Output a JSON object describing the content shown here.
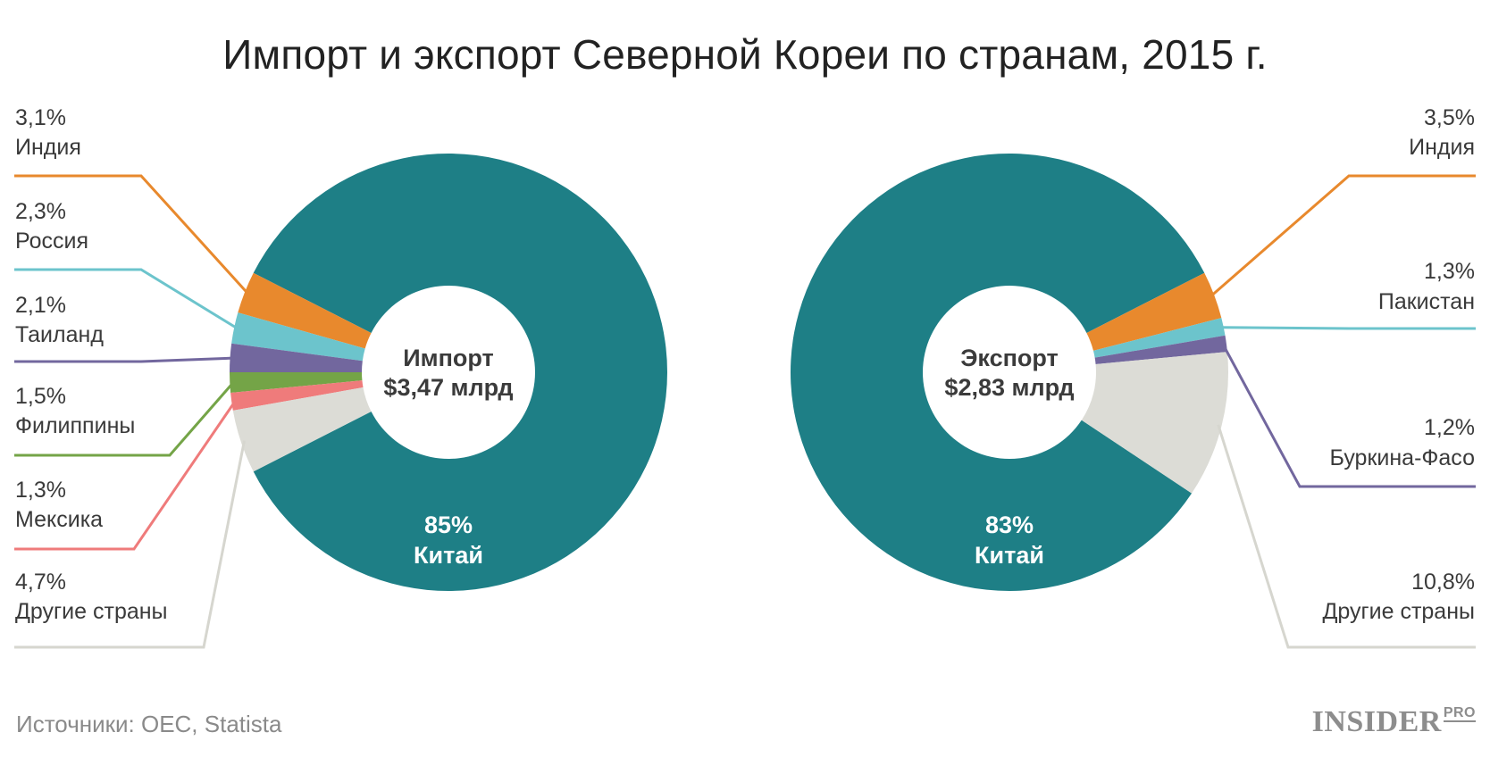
{
  "title": "Импорт и экспорт Северной Кореи по странам, 2015 г.",
  "source": "Источники: OEC, Statista",
  "logo": {
    "main": "INSIDER",
    "sub": "PRO"
  },
  "chart_data": [
    {
      "type": "pie",
      "center": {
        "line1": "Импорт",
        "line2": "$3,47 млрд"
      },
      "slices": [
        {
          "name": "Китай",
          "value": 85,
          "label": "85%",
          "color": "#1e7f86"
        },
        {
          "name": "Индия",
          "value": 3.1,
          "label": "3,1%",
          "color": "#e8892d"
        },
        {
          "name": "Россия",
          "value": 2.3,
          "label": "2,3%",
          "color": "#6cc4cc"
        },
        {
          "name": "Таиланд",
          "value": 2.1,
          "label": "2,1%",
          "color": "#72679e"
        },
        {
          "name": "Филиппины",
          "value": 1.5,
          "label": "1,5%",
          "color": "#74a447"
        },
        {
          "name": "Мексика",
          "value": 1.3,
          "label": "1,3%",
          "color": "#ef7b7b"
        },
        {
          "name": "Другие страны",
          "value": 4.7,
          "label": "4,7%",
          "color": "#dcdcd6"
        }
      ]
    },
    {
      "type": "pie",
      "center": {
        "line1": "Экспорт",
        "line2": "$2,83 млрд"
      },
      "slices": [
        {
          "name": "Китай",
          "value": 83,
          "label": "83%",
          "color": "#1e7f86"
        },
        {
          "name": "Индия",
          "value": 3.5,
          "label": "3,5%",
          "color": "#e8892d"
        },
        {
          "name": "Пакистан",
          "value": 1.3,
          "label": "1,3%",
          "color": "#6cc4cc"
        },
        {
          "name": "Буркина-Фасо",
          "value": 1.2,
          "label": "1,2%",
          "color": "#72679e"
        },
        {
          "name": "Другие страны",
          "value": 10.8,
          "label": "10,8%",
          "color": "#dcdcd6"
        }
      ]
    }
  ]
}
